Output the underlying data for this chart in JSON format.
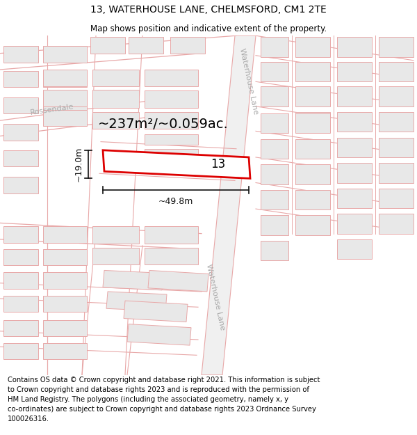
{
  "title": "13, WATERHOUSE LANE, CHELMSFORD, CM1 2TE",
  "subtitle": "Map shows position and indicative extent of the property.",
  "footer": "Contains OS data © Crown copyright and database right 2021. This information is subject\nto Crown copyright and database rights 2023 and is reproduced with the permission of\nHM Land Registry. The polygons (including the associated geometry, namely x, y\nco-ordinates) are subject to Crown copyright and database rights 2023 Ordnance Survey\n100026316.",
  "map_bg": "#f9f9f9",
  "building_fill": "#e8e8e8",
  "building_stroke": "#e8a8a8",
  "road_line": "#e8a8a8",
  "highlight_color": "#dd0000",
  "plot_fill": "#ffffff",
  "area_text": "~237m²/~0.059ac.",
  "width_text": "~49.8m",
  "height_text": "~19.0m",
  "plot_number": "13",
  "street_label_wl_top": "Waterhouse Lane",
  "street_label_wl_bot": "Waterhouse Lane",
  "street_label_ross": "Rossendale",
  "dim_color": "#111111",
  "label_color": "#aaaaaa",
  "title_fontsize": 10,
  "subtitle_fontsize": 8.5,
  "footer_fontsize": 7.2,
  "area_fontsize": 14,
  "dim_fontsize": 9,
  "plot_label_fontsize": 12,
  "street_fontsize": 8
}
